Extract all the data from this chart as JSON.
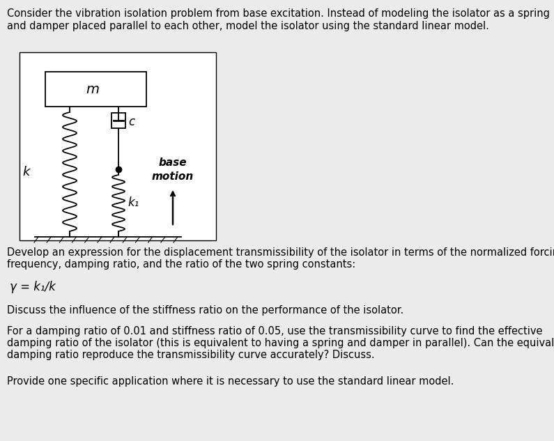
{
  "bg_color": "#ebebeb",
  "text_color": "#000000",
  "line_color": "#000000",
  "diagram_bg": "#ffffff",
  "title_text1": "Consider the vibration isolation problem from base excitation. Instead of modeling the isolator as a spring",
  "title_text2": "and damper placed parallel to each other, model the isolator using the standard linear model.",
  "para1_line1": "Develop an expression for the displacement transmissibility of the isolator in terms of the normalized forcing",
  "para1_line2": "frequency, damping ratio, and the ratio of the two spring constants:",
  "formula": "γ = k₁/k",
  "para2": "Discuss the influence of the stiffness ratio on the performance of the isolator.",
  "para3_line1": "For a damping ratio of 0.01 and stiffness ratio of 0.05, use the transmissibility curve to find the effective",
  "para3_line2": "damping ratio of the isolator (this is equivalent to having a spring and damper in parallel). Can the equivalent",
  "para3_line3": "damping ratio reproduce the transmissibility curve accurately? Discuss.",
  "para4": "Provide one specific application where it is necessary to use the standard linear model.",
  "font_size_body": 10.5
}
